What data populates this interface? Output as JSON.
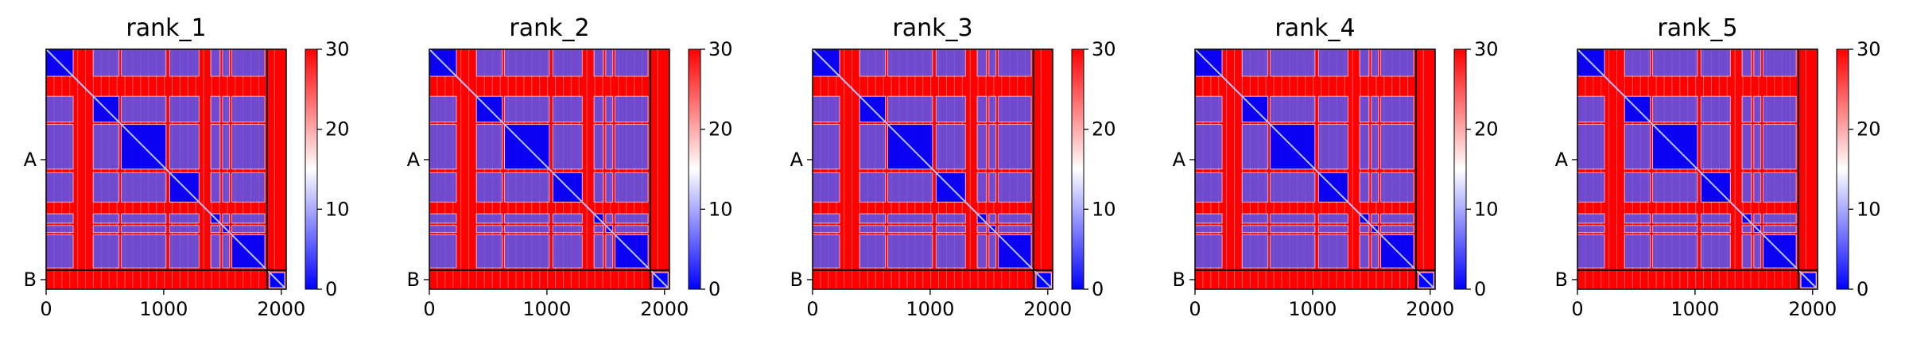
{
  "figure": {
    "panel_titles": [
      "rank_1",
      "rank_2",
      "rank_3",
      "rank_4",
      "rank_5"
    ]
  },
  "chart_data": [
    {
      "type": "heatmap",
      "title": "rank_1",
      "xlabel": "",
      "ylabel": "",
      "x_ticks": [
        0,
        1000,
        2000
      ],
      "x_range": [
        0,
        2042
      ],
      "y_tick_labels": [
        "A",
        "B"
      ],
      "chains": [
        {
          "name": "A",
          "start": 0,
          "end": 1879
        },
        {
          "name": "B",
          "start": 1879,
          "end": 2042
        }
      ],
      "domains": [
        [
          0,
          230
        ],
        [
          400,
          620
        ],
        [
          640,
          1020
        ],
        [
          1050,
          1300
        ],
        [
          1400,
          1480
        ],
        [
          1500,
          1560
        ],
        [
          1580,
          1860
        ],
        [
          1900,
          2030
        ]
      ],
      "colorbar": {
        "min": 0,
        "max": 30,
        "ticks": [
          0,
          10,
          20,
          30
        ],
        "colormap": "bwr",
        "colors": [
          "#0000ff",
          "#ffffff",
          "#ff0000"
        ]
      },
      "divider_color": "#000000"
    },
    {
      "type": "heatmap",
      "title": "rank_2",
      "xlabel": "",
      "ylabel": "",
      "x_ticks": [
        0,
        1000,
        2000
      ],
      "x_range": [
        0,
        2042
      ],
      "y_tick_labels": [
        "A",
        "B"
      ],
      "chains": [
        {
          "name": "A",
          "start": 0,
          "end": 1879
        },
        {
          "name": "B",
          "start": 1879,
          "end": 2042
        }
      ],
      "domains": [
        [
          0,
          230
        ],
        [
          400,
          620
        ],
        [
          640,
          1020
        ],
        [
          1050,
          1300
        ],
        [
          1400,
          1480
        ],
        [
          1500,
          1560
        ],
        [
          1580,
          1860
        ],
        [
          1900,
          2030
        ]
      ],
      "colorbar": {
        "min": 0,
        "max": 30,
        "ticks": [
          0,
          10,
          20,
          30
        ],
        "colormap": "bwr",
        "colors": [
          "#0000ff",
          "#ffffff",
          "#ff0000"
        ]
      },
      "divider_color": "#000000"
    },
    {
      "type": "heatmap",
      "title": "rank_3",
      "xlabel": "",
      "ylabel": "",
      "x_ticks": [
        0,
        1000,
        2000
      ],
      "x_range": [
        0,
        2042
      ],
      "y_tick_labels": [
        "A",
        "B"
      ],
      "chains": [
        {
          "name": "A",
          "start": 0,
          "end": 1879
        },
        {
          "name": "B",
          "start": 1879,
          "end": 2042
        }
      ],
      "domains": [
        [
          0,
          230
        ],
        [
          400,
          620
        ],
        [
          640,
          1020
        ],
        [
          1050,
          1300
        ],
        [
          1400,
          1480
        ],
        [
          1500,
          1560
        ],
        [
          1580,
          1860
        ],
        [
          1900,
          2030
        ]
      ],
      "colorbar": {
        "min": 0,
        "max": 30,
        "ticks": [
          0,
          10,
          20,
          30
        ],
        "colormap": "bwr",
        "colors": [
          "#0000ff",
          "#ffffff",
          "#ff0000"
        ]
      },
      "divider_color": "#000000"
    },
    {
      "type": "heatmap",
      "title": "rank_4",
      "xlabel": "",
      "ylabel": "",
      "x_ticks": [
        0,
        1000,
        2000
      ],
      "x_range": [
        0,
        2042
      ],
      "y_tick_labels": [
        "A",
        "B"
      ],
      "chains": [
        {
          "name": "A",
          "start": 0,
          "end": 1879
        },
        {
          "name": "B",
          "start": 1879,
          "end": 2042
        }
      ],
      "domains": [
        [
          0,
          230
        ],
        [
          400,
          620
        ],
        [
          640,
          1020
        ],
        [
          1050,
          1300
        ],
        [
          1400,
          1480
        ],
        [
          1500,
          1560
        ],
        [
          1580,
          1860
        ],
        [
          1900,
          2030
        ]
      ],
      "colorbar": {
        "min": 0,
        "max": 30,
        "ticks": [
          0,
          10,
          20,
          30
        ],
        "colormap": "bwr",
        "colors": [
          "#0000ff",
          "#ffffff",
          "#ff0000"
        ]
      },
      "divider_color": "#000000"
    },
    {
      "type": "heatmap",
      "title": "rank_5",
      "xlabel": "",
      "ylabel": "",
      "x_ticks": [
        0,
        1000,
        2000
      ],
      "x_range": [
        0,
        2042
      ],
      "y_tick_labels": [
        "A",
        "B"
      ],
      "chains": [
        {
          "name": "A",
          "start": 0,
          "end": 1879
        },
        {
          "name": "B",
          "start": 1879,
          "end": 2042
        }
      ],
      "domains": [
        [
          0,
          230
        ],
        [
          400,
          620
        ],
        [
          640,
          1020
        ],
        [
          1050,
          1300
        ],
        [
          1400,
          1480
        ],
        [
          1500,
          1560
        ],
        [
          1580,
          1860
        ],
        [
          1900,
          2030
        ]
      ],
      "colorbar": {
        "min": 0,
        "max": 30,
        "ticks": [
          0,
          10,
          20,
          30
        ],
        "colormap": "bwr",
        "colors": [
          "#0000ff",
          "#ffffff",
          "#ff0000"
        ]
      },
      "divider_color": "#000000"
    }
  ]
}
